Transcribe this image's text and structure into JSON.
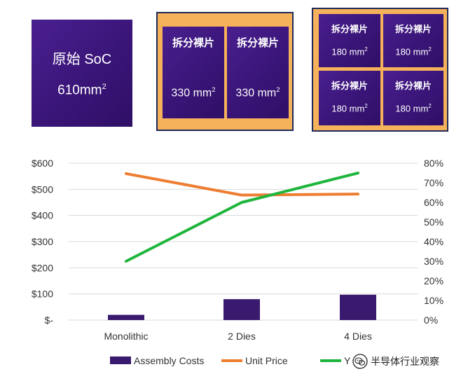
{
  "dies": {
    "soc": {
      "title": "原始 SoC",
      "area_value": "610mm",
      "area_exp": "2"
    },
    "two": [
      {
        "label": "拆分裸片",
        "area_value": "330 mm",
        "area_exp": "2"
      },
      {
        "label": "拆分裸片",
        "area_value": "330 mm",
        "area_exp": "2"
      }
    ],
    "four": [
      {
        "label": "拆分裸片",
        "area_value": "180 mm",
        "area_exp": "2"
      },
      {
        "label": "拆分裸片",
        "area_value": "180 mm",
        "area_exp": "2"
      },
      {
        "label": "拆分裸片",
        "area_value": "180 mm",
        "area_exp": "2"
      },
      {
        "label": "拆分裸片",
        "area_value": "180 mm",
        "area_exp": "2"
      }
    ]
  },
  "chart_data": {
    "type": "bar",
    "categories": [
      "Monolithic",
      "2 Dies",
      "4 Dies"
    ],
    "series": [
      {
        "name": "Assembly Costs",
        "type": "bar",
        "axis": "left",
        "color": "#3a1a6e",
        "values": [
          20,
          80,
          97
        ]
      },
      {
        "name": "Unit Price",
        "type": "line",
        "axis": "left",
        "color": "#ed7d31",
        "values": [
          560,
          478,
          482
        ]
      },
      {
        "name": "Yield",
        "type": "line",
        "axis": "right",
        "color": "#1fb53c",
        "values": [
          0.3,
          0.6,
          0.75
        ]
      }
    ],
    "y_left": {
      "min": 0,
      "max": 600,
      "ticks": [
        "$-",
        "$100",
        "$200",
        "$300",
        "$400",
        "$500",
        "$600"
      ]
    },
    "y_right": {
      "min": 0,
      "max": 0.8,
      "ticks": [
        "0%",
        "10%",
        "20%",
        "30%",
        "40%",
        "50%",
        "60%",
        "70%",
        "80%"
      ]
    },
    "grid": true,
    "legend": "bottom",
    "legend_visible": [
      "Assembly Costs",
      "Unit Price",
      "Y"
    ]
  },
  "watermark": {
    "text": "半导体行业观察",
    "icon": "wechat-icon"
  }
}
